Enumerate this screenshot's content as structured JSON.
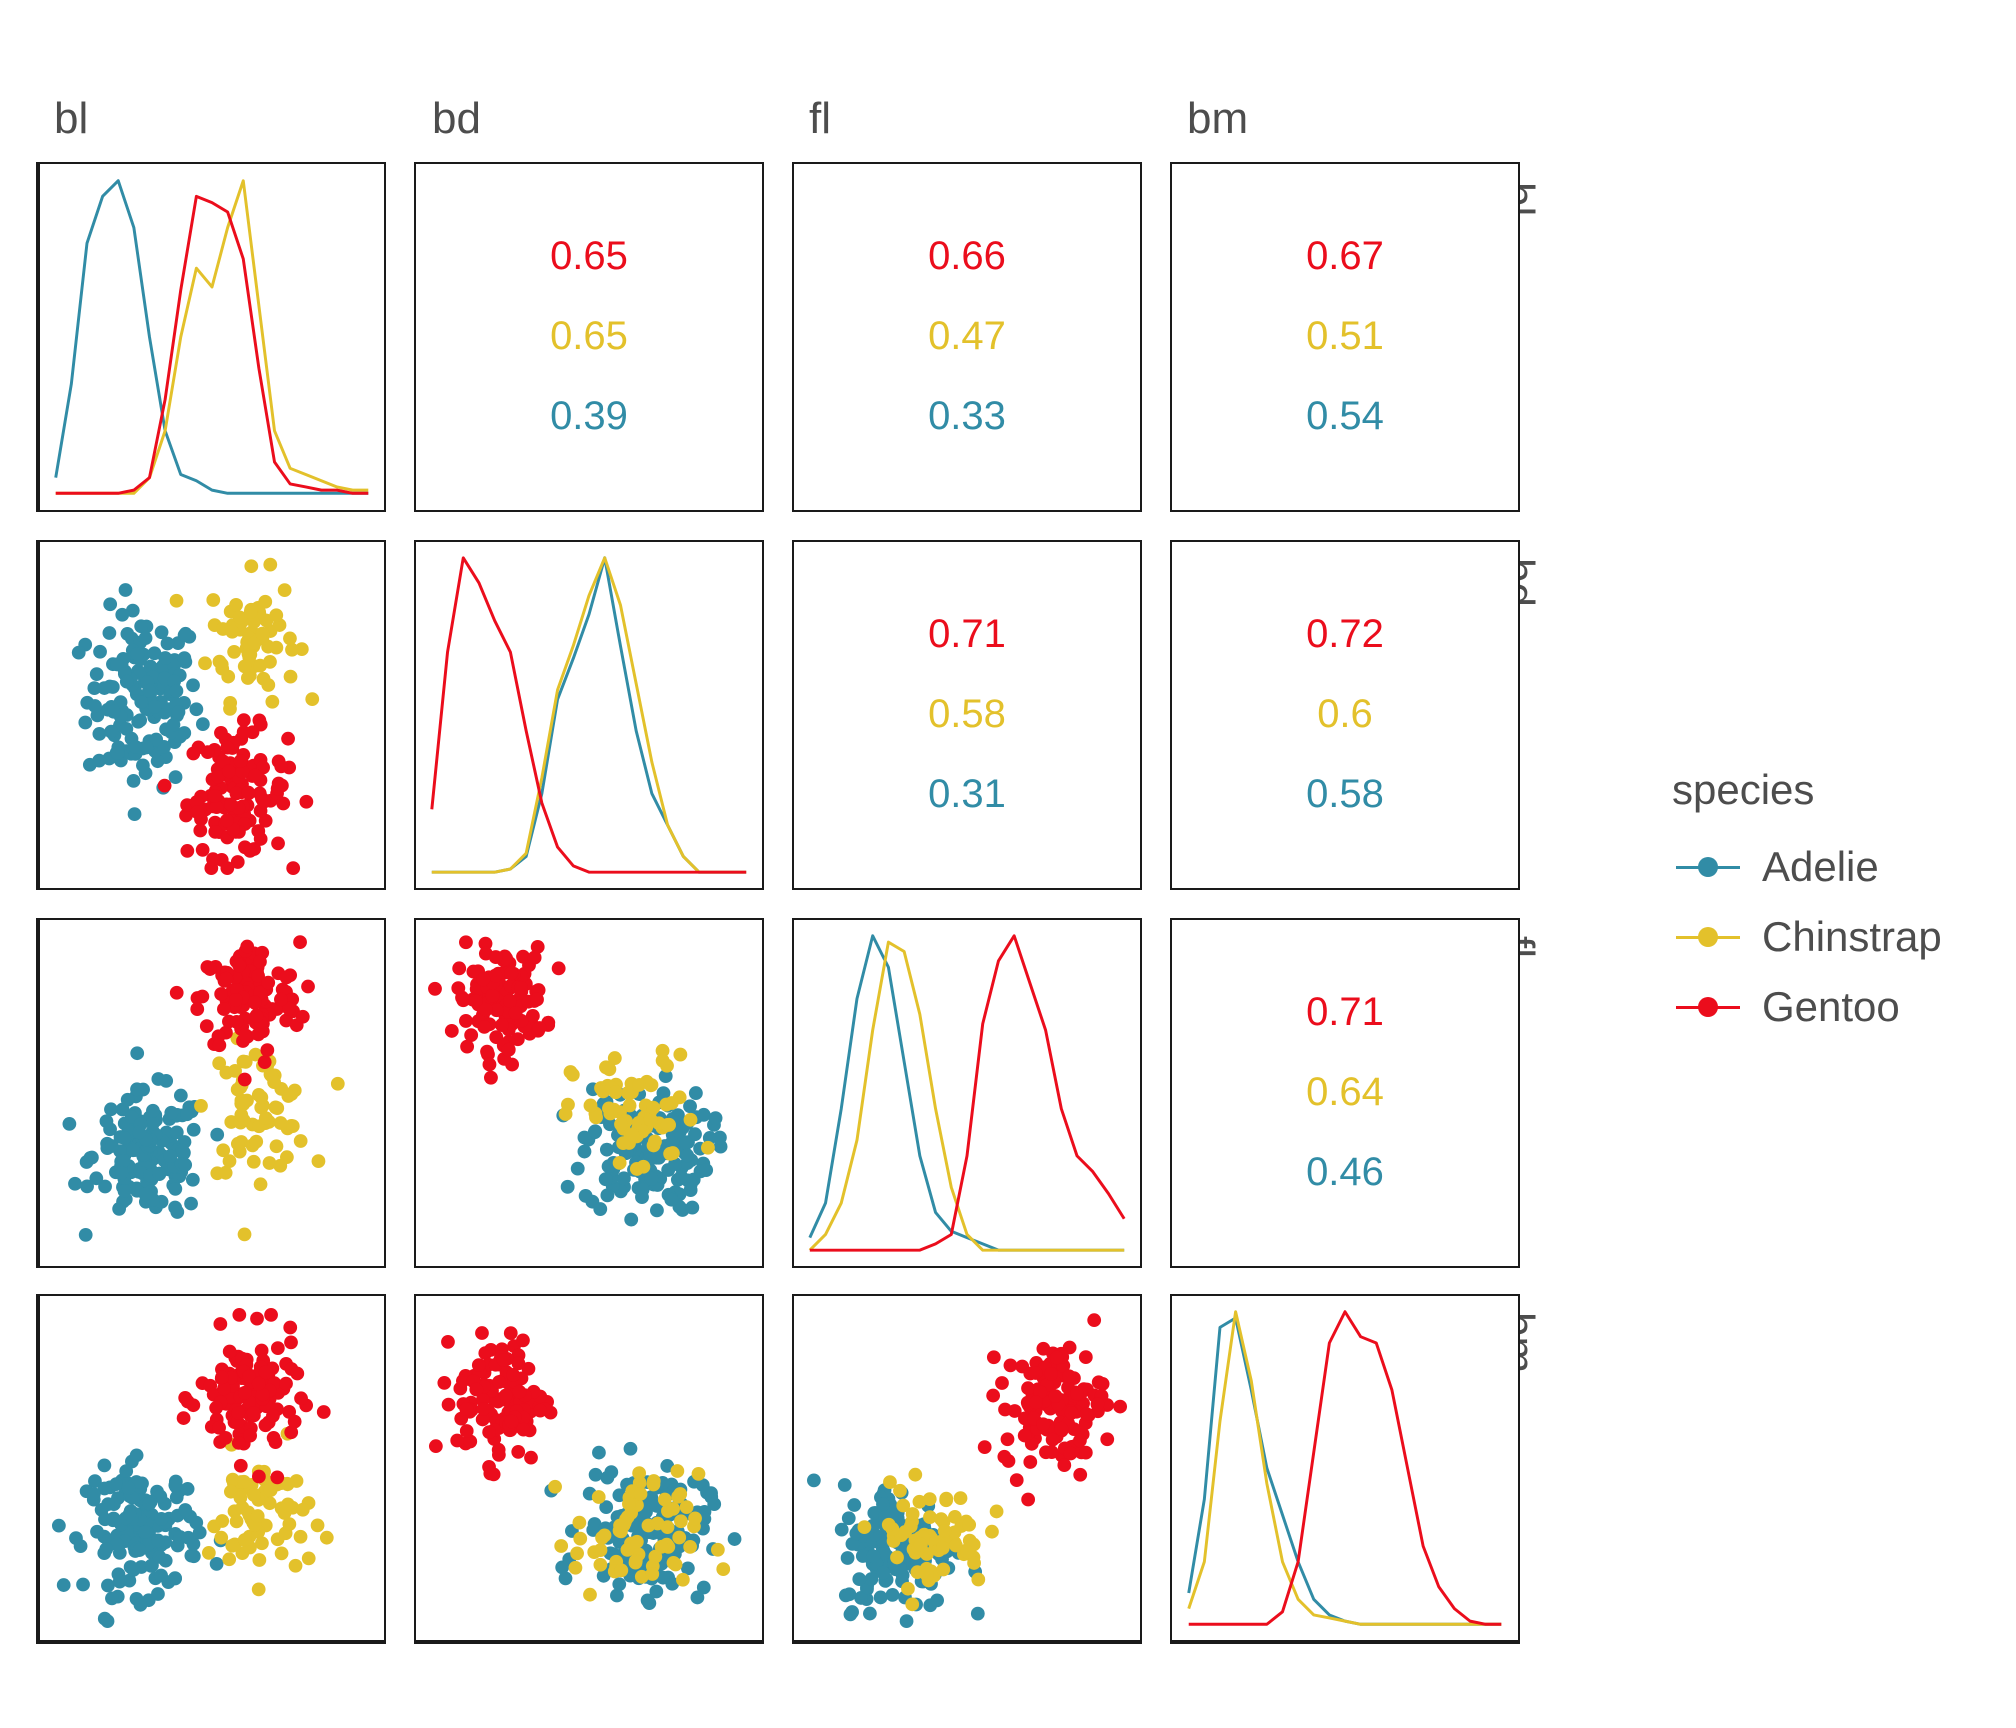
{
  "variables": [
    "bl",
    "bd",
    "fl",
    "bm"
  ],
  "species": [
    {
      "name": "Adelie",
      "color": "#318CA6"
    },
    {
      "name": "Chinstrap",
      "color": "#E3C12B"
    },
    {
      "name": "Gentoo",
      "color": "#EB0D1C"
    }
  ],
  "legend": {
    "title": "species",
    "key_glyph": "a",
    "items": [
      "Adelie",
      "Chinstrap",
      "Gentoo"
    ]
  },
  "chart_data": {
    "type": "scatter",
    "layout": "pairs-matrix",
    "diagonal": "density",
    "upper": "correlation",
    "lower": "scatter",
    "legend_position": "right",
    "grid": false,
    "correlations": {
      "bl-bd": {
        "Gentoo": "0.65",
        "Chinstrap": "0.65",
        "Adelie": "0.39"
      },
      "bl-fl": {
        "Gentoo": "0.66",
        "Chinstrap": "0.47",
        "Adelie": "0.33"
      },
      "bl-bm": {
        "Gentoo": "0.67",
        "Chinstrap": "0.51",
        "Adelie": "0.54"
      },
      "bd-fl": {
        "Gentoo": "0.71",
        "Chinstrap": "0.58",
        "Adelie": "0.31"
      },
      "bd-bm": {
        "Gentoo": "0.72",
        "Chinstrap": "0.6",
        "Adelie": "0.58"
      },
      "fl-bm": {
        "Gentoo": "0.71",
        "Chinstrap": "0.64",
        "Adelie": "0.46"
      }
    },
    "densities": {
      "bl": {
        "x": [
          0,
          0.05,
          0.1,
          0.15,
          0.2,
          0.25,
          0.3,
          0.35,
          0.4,
          0.45,
          0.5,
          0.55,
          0.6,
          0.65,
          0.7,
          0.75,
          0.8,
          0.85,
          0.9,
          0.95,
          1
        ],
        "Adelie": [
          0.05,
          0.35,
          0.8,
          0.95,
          1.0,
          0.85,
          0.5,
          0.2,
          0.06,
          0.04,
          0.01,
          0,
          0,
          0,
          0,
          0,
          0,
          0,
          0,
          0,
          0
        ],
        "Chinstrap": [
          0,
          0,
          0,
          0,
          0,
          0,
          0.05,
          0.2,
          0.5,
          0.72,
          0.66,
          0.85,
          1.0,
          0.6,
          0.2,
          0.08,
          0.06,
          0.04,
          0.02,
          0.01,
          0.01
        ],
        "Gentoo": [
          0,
          0,
          0,
          0,
          0,
          0.01,
          0.05,
          0.3,
          0.65,
          0.95,
          0.93,
          0.9,
          0.75,
          0.4,
          0.1,
          0.03,
          0.02,
          0.01,
          0.01,
          0,
          0
        ]
      },
      "bd": {
        "x": [
          0,
          0.05,
          0.1,
          0.15,
          0.2,
          0.25,
          0.3,
          0.35,
          0.4,
          0.45,
          0.5,
          0.55,
          0.6,
          0.65,
          0.7,
          0.75,
          0.8,
          0.85,
          0.9,
          0.95,
          1
        ],
        "Gentoo": [
          0.2,
          0.7,
          1.0,
          0.92,
          0.8,
          0.7,
          0.45,
          0.22,
          0.08,
          0.02,
          0,
          0,
          0,
          0,
          0,
          0,
          0,
          0,
          0,
          0,
          0
        ],
        "Adelie": [
          0,
          0,
          0,
          0,
          0,
          0.01,
          0.05,
          0.25,
          0.55,
          0.68,
          0.82,
          1.0,
          0.72,
          0.45,
          0.25,
          0.15,
          0.05,
          0,
          0,
          0,
          0
        ],
        "Chinstrap": [
          0,
          0,
          0,
          0,
          0,
          0.01,
          0.06,
          0.3,
          0.58,
          0.72,
          0.88,
          1.0,
          0.85,
          0.6,
          0.35,
          0.15,
          0.05,
          0,
          0,
          0,
          0
        ]
      },
      "fl": {
        "x": [
          0,
          0.05,
          0.1,
          0.15,
          0.2,
          0.25,
          0.3,
          0.35,
          0.4,
          0.45,
          0.5,
          0.55,
          0.6,
          0.65,
          0.7,
          0.75,
          0.8,
          0.85,
          0.9,
          0.95,
          1
        ],
        "Adelie": [
          0.04,
          0.15,
          0.45,
          0.8,
          1.0,
          0.9,
          0.6,
          0.3,
          0.12,
          0.06,
          0.04,
          0.02,
          0,
          0,
          0,
          0,
          0,
          0,
          0,
          0,
          0
        ],
        "Chinstrap": [
          0,
          0.05,
          0.15,
          0.35,
          0.7,
          0.98,
          0.95,
          0.75,
          0.45,
          0.2,
          0.05,
          0,
          0,
          0,
          0,
          0,
          0,
          0,
          0,
          0,
          0
        ],
        "Gentoo": [
          0,
          0,
          0,
          0,
          0,
          0,
          0,
          0,
          0.02,
          0.05,
          0.3,
          0.72,
          0.92,
          1.0,
          0.85,
          0.7,
          0.45,
          0.3,
          0.25,
          0.18,
          0.1
        ]
      },
      "bm": {
        "x": [
          0,
          0.05,
          0.1,
          0.15,
          0.2,
          0.25,
          0.3,
          0.35,
          0.4,
          0.45,
          0.5,
          0.55,
          0.6,
          0.65,
          0.7,
          0.75,
          0.8,
          0.85,
          0.9,
          0.95,
          1
        ],
        "Adelie": [
          0.1,
          0.4,
          0.95,
          0.98,
          0.75,
          0.5,
          0.35,
          0.2,
          0.08,
          0.03,
          0.01,
          0,
          0,
          0,
          0,
          0,
          0,
          0,
          0,
          0,
          0
        ],
        "Chinstrap": [
          0.05,
          0.2,
          0.65,
          1.0,
          0.78,
          0.45,
          0.2,
          0.08,
          0.03,
          0.02,
          0.01,
          0,
          0,
          0,
          0,
          0,
          0,
          0,
          0,
          0,
          0
        ],
        "Gentoo": [
          0,
          0,
          0,
          0,
          0,
          0,
          0.04,
          0.2,
          0.55,
          0.9,
          1.0,
          0.92,
          0.9,
          0.75,
          0.5,
          0.25,
          0.12,
          0.05,
          0.01,
          0,
          0
        ]
      }
    },
    "scatter_clusters": {
      "bd-bl": {
        "Adelie": {
          "center": [
            0.28,
            0.55
          ],
          "spread": [
            0.09,
            0.14
          ],
          "n": 150
        },
        "Chinstrap": {
          "center": [
            0.63,
            0.75
          ],
          "spread": [
            0.07,
            0.1
          ],
          "n": 68
        },
        "Gentoo": {
          "center": [
            0.58,
            0.25
          ],
          "spread": [
            0.08,
            0.1
          ],
          "n": 124
        }
      },
      "fl-bl": {
        "Adelie": {
          "center": [
            0.3,
            0.3
          ],
          "spread": [
            0.09,
            0.1
          ],
          "n": 150
        },
        "Chinstrap": {
          "center": [
            0.65,
            0.45
          ],
          "spread": [
            0.08,
            0.1
          ],
          "n": 68
        },
        "Gentoo": {
          "center": [
            0.62,
            0.8
          ],
          "spread": [
            0.08,
            0.09
          ],
          "n": 124
        }
      },
      "bm-bl": {
        "Adelie": {
          "center": [
            0.28,
            0.3
          ],
          "spread": [
            0.09,
            0.1
          ],
          "n": 150
        },
        "Chinstrap": {
          "center": [
            0.65,
            0.35
          ],
          "spread": [
            0.08,
            0.1
          ],
          "n": 68
        },
        "Gentoo": {
          "center": [
            0.62,
            0.72
          ],
          "spread": [
            0.08,
            0.1
          ],
          "n": 124
        }
      },
      "fl-bd": {
        "Adelie": {
          "center": [
            0.68,
            0.32
          ],
          "spread": [
            0.1,
            0.1
          ],
          "n": 150
        },
        "Chinstrap": {
          "center": [
            0.65,
            0.42
          ],
          "spread": [
            0.1,
            0.1
          ],
          "n": 68
        },
        "Gentoo": {
          "center": [
            0.22,
            0.8
          ],
          "spread": [
            0.07,
            0.08
          ],
          "n": 124
        }
      },
      "bm-bd": {
        "Adelie": {
          "center": [
            0.68,
            0.3
          ],
          "spread": [
            0.1,
            0.1
          ],
          "n": 150
        },
        "Chinstrap": {
          "center": [
            0.65,
            0.28
          ],
          "spread": [
            0.1,
            0.1
          ],
          "n": 68
        },
        "Gentoo": {
          "center": [
            0.22,
            0.72
          ],
          "spread": [
            0.07,
            0.1
          ],
          "n": 124
        }
      },
      "bm-fl": {
        "Adelie": {
          "center": [
            0.28,
            0.25
          ],
          "spread": [
            0.09,
            0.1
          ],
          "n": 150
        },
        "Chinstrap": {
          "center": [
            0.38,
            0.28
          ],
          "spread": [
            0.09,
            0.08
          ],
          "n": 68
        },
        "Gentoo": {
          "center": [
            0.78,
            0.7
          ],
          "spread": [
            0.08,
            0.1
          ],
          "n": 124
        }
      }
    }
  }
}
